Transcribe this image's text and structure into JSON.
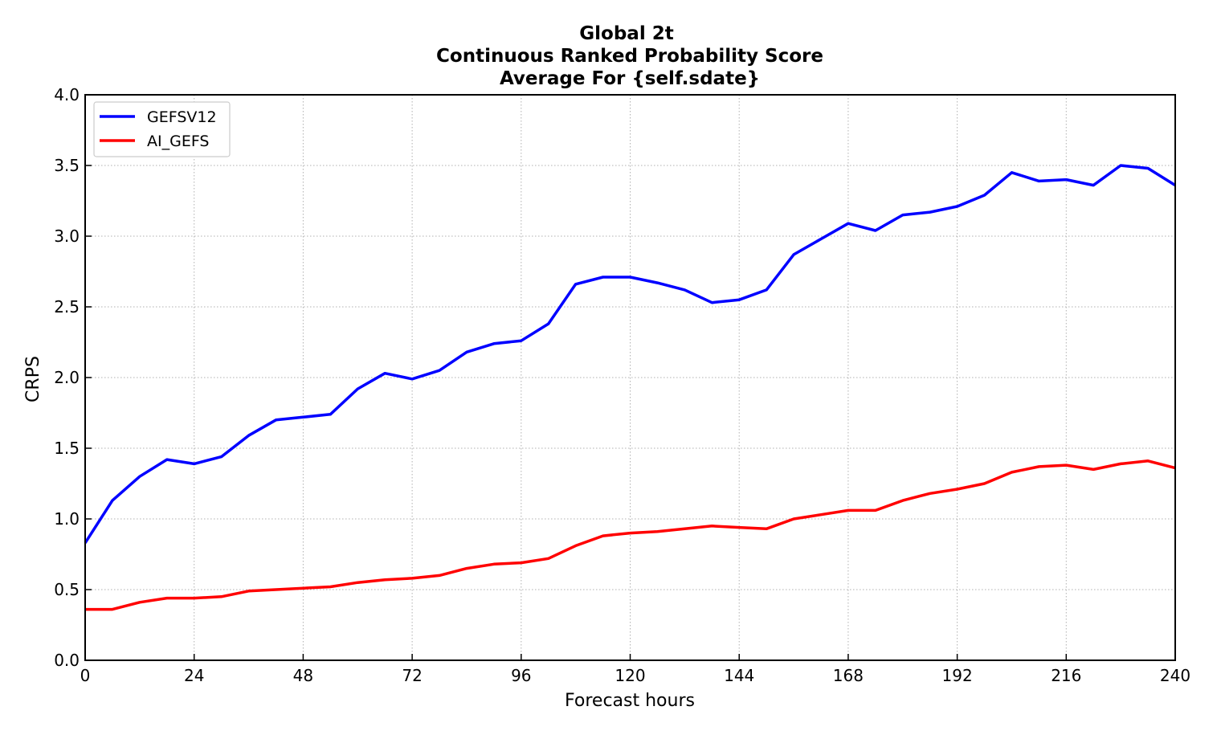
{
  "chart_data": {
    "type": "line",
    "title_lines": [
      "Global 2t",
      "Continuous Ranked Probability Score",
      "Average For {self.sdate}"
    ],
    "xlabel": "Forecast hours",
    "ylabel": "CRPS",
    "xlim": [
      0,
      240
    ],
    "ylim": [
      0.0,
      4.0
    ],
    "xticks": [
      0,
      24,
      48,
      72,
      96,
      120,
      144,
      168,
      192,
      216,
      240
    ],
    "yticks": [
      0.0,
      0.5,
      1.0,
      1.5,
      2.0,
      2.5,
      3.0,
      3.5,
      4.0
    ],
    "xtick_labels": [
      "0",
      "24",
      "48",
      "72",
      "96",
      "120",
      "144",
      "168",
      "192",
      "216",
      "240"
    ],
    "ytick_labels": [
      "0.0",
      "0.5",
      "1.0",
      "1.5",
      "2.0",
      "2.5",
      "3.0",
      "3.5",
      "4.0"
    ],
    "grid": true,
    "legend_position": "top-left",
    "x": [
      0,
      6,
      12,
      18,
      24,
      30,
      36,
      42,
      48,
      54,
      60,
      66,
      72,
      78,
      84,
      90,
      96,
      102,
      108,
      114,
      120,
      126,
      132,
      138,
      144,
      150,
      156,
      162,
      168,
      174,
      180,
      186,
      192,
      198,
      204,
      210,
      216,
      222,
      228,
      234,
      240
    ],
    "series": [
      {
        "name": "GEFSV12",
        "color": "#0000ff",
        "values": [
          0.83,
          1.13,
          1.3,
          1.42,
          1.39,
          1.44,
          1.59,
          1.7,
          1.72,
          1.74,
          1.92,
          2.03,
          1.99,
          2.05,
          2.18,
          2.24,
          2.26,
          2.38,
          2.66,
          2.71,
          2.71,
          2.67,
          2.62,
          2.53,
          2.55,
          2.62,
          2.87,
          2.98,
          3.09,
          3.04,
          3.15,
          3.17,
          3.21,
          3.29,
          3.45,
          3.39,
          3.4,
          3.36,
          3.5,
          3.48,
          3.36
        ]
      },
      {
        "name": "AI_GEFS",
        "color": "#ff0000",
        "values": [
          0.36,
          0.36,
          0.41,
          0.44,
          0.44,
          0.45,
          0.49,
          0.5,
          0.51,
          0.52,
          0.55,
          0.57,
          0.58,
          0.6,
          0.65,
          0.68,
          0.69,
          0.72,
          0.81,
          0.88,
          0.9,
          0.91,
          0.93,
          0.95,
          0.94,
          0.93,
          1.0,
          1.03,
          1.06,
          1.06,
          1.13,
          1.18,
          1.21,
          1.25,
          1.33,
          1.37,
          1.38,
          1.35,
          1.39,
          1.41,
          1.36
        ]
      }
    ]
  }
}
